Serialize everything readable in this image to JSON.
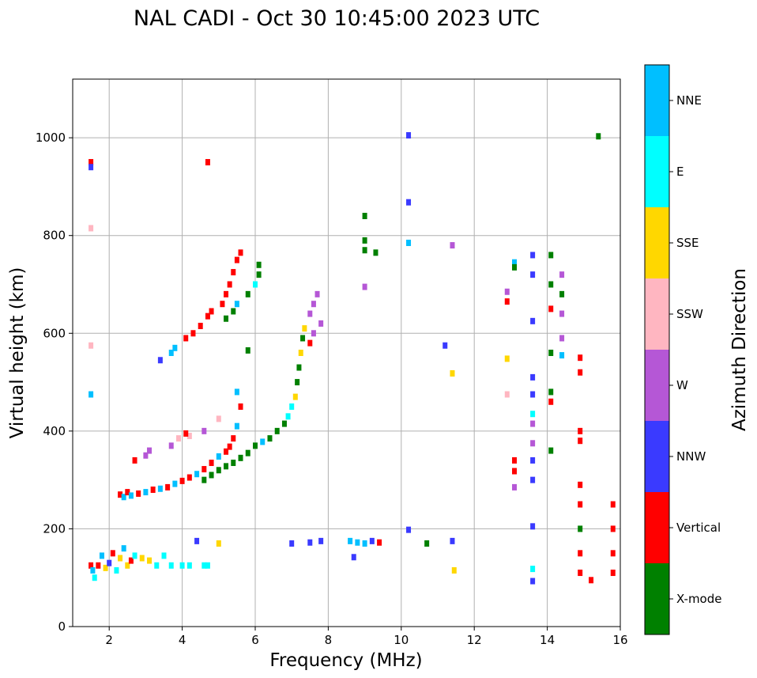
{
  "chart_data": {
    "type": "scatter",
    "title": "NAL CADI - Oct 30 10:45:00 2023 UTC",
    "xlabel": "Frequency (MHz)",
    "ylabel": "Virtual height (km)",
    "xlim": [
      1,
      16
    ],
    "ylim": [
      0,
      1120
    ],
    "x_ticks": [
      2,
      4,
      6,
      8,
      10,
      12,
      14,
      16
    ],
    "y_ticks": [
      0,
      200,
      400,
      600,
      800,
      1000
    ],
    "grid": true,
    "colorbar": {
      "label": "Azimuth Direction",
      "categories": [
        {
          "name": "X-mode",
          "color": "#008000"
        },
        {
          "name": "Vertical",
          "color": "#ff0000"
        },
        {
          "name": "NNW",
          "color": "#3a3aff"
        },
        {
          "name": "W",
          "color": "#b557d6"
        },
        {
          "name": "SSW",
          "color": "#ffb6c1"
        },
        {
          "name": "SSE",
          "color": "#ffd700"
        },
        {
          "name": "E",
          "color": "#00ffff"
        },
        {
          "name": "NNE",
          "color": "#00bfff"
        }
      ]
    },
    "points": [
      [
        1.5,
        950,
        "Vertical"
      ],
      [
        1.5,
        940,
        "NNW"
      ],
      [
        1.5,
        815,
        "SSW"
      ],
      [
        1.5,
        575,
        "SSW"
      ],
      [
        1.5,
        475,
        "NNE"
      ],
      [
        1.5,
        125,
        "Vertical"
      ],
      [
        1.55,
        115,
        "NNE"
      ],
      [
        1.6,
        100,
        "E"
      ],
      [
        1.7,
        125,
        "Vertical"
      ],
      [
        1.8,
        145,
        "NNE"
      ],
      [
        1.9,
        120,
        "SSE"
      ],
      [
        2.0,
        130,
        "NNW"
      ],
      [
        2.1,
        150,
        "Vertical"
      ],
      [
        2.2,
        115,
        "E"
      ],
      [
        2.3,
        140,
        "SSE"
      ],
      [
        2.4,
        160,
        "NNE"
      ],
      [
        2.5,
        125,
        "SSE"
      ],
      [
        2.6,
        135,
        "Vertical"
      ],
      [
        2.7,
        145,
        "E"
      ],
      [
        2.9,
        140,
        "SSE"
      ],
      [
        3.1,
        135,
        "SSE"
      ],
      [
        3.3,
        125,
        "E"
      ],
      [
        3.5,
        145,
        "E"
      ],
      [
        3.7,
        125,
        "E"
      ],
      [
        4.0,
        125,
        "E"
      ],
      [
        4.2,
        125,
        "E"
      ],
      [
        4.6,
        125,
        "E"
      ],
      [
        4.7,
        125,
        "E"
      ],
      [
        4.4,
        175,
        "NNW"
      ],
      [
        5.0,
        170,
        "SSE"
      ],
      [
        4.7,
        950,
        "Vertical"
      ],
      [
        2.3,
        270,
        "Vertical"
      ],
      [
        2.4,
        265,
        "NNE"
      ],
      [
        2.5,
        275,
        "Vertical"
      ],
      [
        2.6,
        268,
        "NNE"
      ],
      [
        2.8,
        272,
        "Vertical"
      ],
      [
        3.0,
        275,
        "NNE"
      ],
      [
        3.2,
        280,
        "Vertical"
      ],
      [
        3.4,
        282,
        "NNE"
      ],
      [
        3.6,
        285,
        "Vertical"
      ],
      [
        3.8,
        292,
        "NNE"
      ],
      [
        4.0,
        298,
        "Vertical"
      ],
      [
        4.2,
        305,
        "Vertical"
      ],
      [
        4.4,
        312,
        "NNE"
      ],
      [
        4.6,
        322,
        "Vertical"
      ],
      [
        4.8,
        335,
        "Vertical"
      ],
      [
        5.0,
        348,
        "NNE"
      ],
      [
        5.2,
        358,
        "Vertical"
      ],
      [
        5.3,
        368,
        "Vertical"
      ],
      [
        5.4,
        385,
        "Vertical"
      ],
      [
        5.5,
        410,
        "NNE"
      ],
      [
        5.6,
        450,
        "Vertical"
      ],
      [
        5.5,
        480,
        "NNE"
      ],
      [
        4.6,
        300,
        "X-mode"
      ],
      [
        4.8,
        310,
        "X-mode"
      ],
      [
        5.0,
        320,
        "X-mode"
      ],
      [
        5.2,
        328,
        "X-mode"
      ],
      [
        5.4,
        335,
        "X-mode"
      ],
      [
        5.6,
        345,
        "X-mode"
      ],
      [
        5.8,
        355,
        "X-mode"
      ],
      [
        6.0,
        370,
        "X-mode"
      ],
      [
        6.2,
        378,
        "NNE"
      ],
      [
        6.4,
        385,
        "X-mode"
      ],
      [
        6.6,
        400,
        "X-mode"
      ],
      [
        6.8,
        415,
        "X-mode"
      ],
      [
        6.9,
        430,
        "E"
      ],
      [
        7.0,
        450,
        "E"
      ],
      [
        7.1,
        470,
        "SSE"
      ],
      [
        7.15,
        500,
        "X-mode"
      ],
      [
        7.2,
        530,
        "X-mode"
      ],
      [
        7.25,
        560,
        "SSE"
      ],
      [
        7.3,
        590,
        "X-mode"
      ],
      [
        7.35,
        610,
        "SSE"
      ],
      [
        7.5,
        640,
        "W"
      ],
      [
        7.6,
        660,
        "W"
      ],
      [
        7.7,
        680,
        "W"
      ],
      [
        7.6,
        600,
        "W"
      ],
      [
        7.8,
        620,
        "W"
      ],
      [
        7.5,
        580,
        "Vertical"
      ],
      [
        3.0,
        350,
        "W"
      ],
      [
        3.1,
        360,
        "W"
      ],
      [
        3.7,
        370,
        "W"
      ],
      [
        3.9,
        385,
        "SSW"
      ],
      [
        4.2,
        390,
        "SSW"
      ],
      [
        4.6,
        400,
        "W"
      ],
      [
        5.0,
        425,
        "SSW"
      ],
      [
        2.7,
        340,
        "Vertical"
      ],
      [
        4.1,
        395,
        "Vertical"
      ],
      [
        3.4,
        545,
        "NNW"
      ],
      [
        3.7,
        560,
        "NNE"
      ],
      [
        3.8,
        570,
        "NNE"
      ],
      [
        4.1,
        590,
        "Vertical"
      ],
      [
        4.3,
        600,
        "Vertical"
      ],
      [
        4.5,
        615,
        "Vertical"
      ],
      [
        4.7,
        635,
        "Vertical"
      ],
      [
        4.8,
        645,
        "Vertical"
      ],
      [
        5.1,
        660,
        "Vertical"
      ],
      [
        5.2,
        680,
        "Vertical"
      ],
      [
        5.3,
        700,
        "Vertical"
      ],
      [
        5.4,
        725,
        "Vertical"
      ],
      [
        5.5,
        750,
        "Vertical"
      ],
      [
        5.6,
        765,
        "Vertical"
      ],
      [
        5.2,
        630,
        "X-mode"
      ],
      [
        5.4,
        645,
        "X-mode"
      ],
      [
        5.5,
        660,
        "NNE"
      ],
      [
        5.8,
        680,
        "X-mode"
      ],
      [
        6.1,
        720,
        "X-mode"
      ],
      [
        6.0,
        700,
        "E"
      ],
      [
        5.8,
        565,
        "X-mode"
      ],
      [
        6.1,
        740,
        "X-mode"
      ],
      [
        7.0,
        170,
        "NNW"
      ],
      [
        7.5,
        172,
        "NNW"
      ],
      [
        7.8,
        175,
        "NNW"
      ],
      [
        8.6,
        175,
        "NNE"
      ],
      [
        8.8,
        172,
        "NNE"
      ],
      [
        9.0,
        170,
        "NNE"
      ],
      [
        9.2,
        175,
        "NNW"
      ],
      [
        9.4,
        172,
        "Vertical"
      ],
      [
        8.7,
        142,
        "NNW"
      ],
      [
        10.2,
        198,
        "NNW"
      ],
      [
        10.7,
        170,
        "X-mode"
      ],
      [
        11.4,
        175,
        "NNW"
      ],
      [
        11.45,
        115,
        "SSE"
      ],
      [
        9.0,
        840,
        "X-mode"
      ],
      [
        9.0,
        790,
        "X-mode"
      ],
      [
        9.0,
        770,
        "X-mode"
      ],
      [
        9.3,
        765,
        "X-mode"
      ],
      [
        9.0,
        695,
        "W"
      ],
      [
        10.2,
        1005,
        "NNW"
      ],
      [
        10.2,
        868,
        "NNW"
      ],
      [
        10.2,
        785,
        "NNE"
      ],
      [
        11.4,
        780,
        "W"
      ],
      [
        11.2,
        575,
        "NNW"
      ],
      [
        11.4,
        518,
        "SSE"
      ],
      [
        12.9,
        685,
        "W"
      ],
      [
        12.9,
        665,
        "Vertical"
      ],
      [
        13.1,
        745,
        "NNE"
      ],
      [
        13.1,
        735,
        "X-mode"
      ],
      [
        12.9,
        548,
        "SSE"
      ],
      [
        12.9,
        475,
        "SSW"
      ],
      [
        13.1,
        340,
        "Vertical"
      ],
      [
        13.1,
        318,
        "Vertical"
      ],
      [
        13.1,
        285,
        "W"
      ],
      [
        13.6,
        760,
        "NNW"
      ],
      [
        13.6,
        720,
        "NNW"
      ],
      [
        13.6,
        625,
        "NNW"
      ],
      [
        13.6,
        510,
        "NNW"
      ],
      [
        13.6,
        475,
        "NNW"
      ],
      [
        13.6,
        435,
        "E"
      ],
      [
        13.6,
        415,
        "W"
      ],
      [
        13.6,
        375,
        "W"
      ],
      [
        13.6,
        340,
        "NNW"
      ],
      [
        13.6,
        300,
        "NNW"
      ],
      [
        13.6,
        205,
        "NNW"
      ],
      [
        13.6,
        118,
        "E"
      ],
      [
        13.6,
        93,
        "NNW"
      ],
      [
        14.1,
        760,
        "X-mode"
      ],
      [
        14.1,
        700,
        "X-mode"
      ],
      [
        14.1,
        650,
        "Vertical"
      ],
      [
        14.1,
        560,
        "X-mode"
      ],
      [
        14.1,
        480,
        "X-mode"
      ],
      [
        14.1,
        460,
        "Vertical"
      ],
      [
        14.1,
        360,
        "X-mode"
      ],
      [
        14.4,
        720,
        "W"
      ],
      [
        14.4,
        680,
        "X-mode"
      ],
      [
        14.4,
        640,
        "W"
      ],
      [
        14.4,
        590,
        "W"
      ],
      [
        14.4,
        555,
        "NNE"
      ],
      [
        14.9,
        550,
        "Vertical"
      ],
      [
        14.9,
        520,
        "Vertical"
      ],
      [
        14.9,
        400,
        "Vertical"
      ],
      [
        14.9,
        380,
        "Vertical"
      ],
      [
        14.9,
        290,
        "Vertical"
      ],
      [
        14.9,
        250,
        "Vertical"
      ],
      [
        14.9,
        200,
        "X-mode"
      ],
      [
        14.9,
        150,
        "Vertical"
      ],
      [
        14.9,
        110,
        "Vertical"
      ],
      [
        15.2,
        95,
        "Vertical"
      ],
      [
        15.4,
        1003,
        "X-mode"
      ],
      [
        15.8,
        250,
        "Vertical"
      ],
      [
        15.8,
        200,
        "Vertical"
      ],
      [
        15.8,
        150,
        "Vertical"
      ],
      [
        15.8,
        110,
        "Vertical"
      ]
    ]
  }
}
